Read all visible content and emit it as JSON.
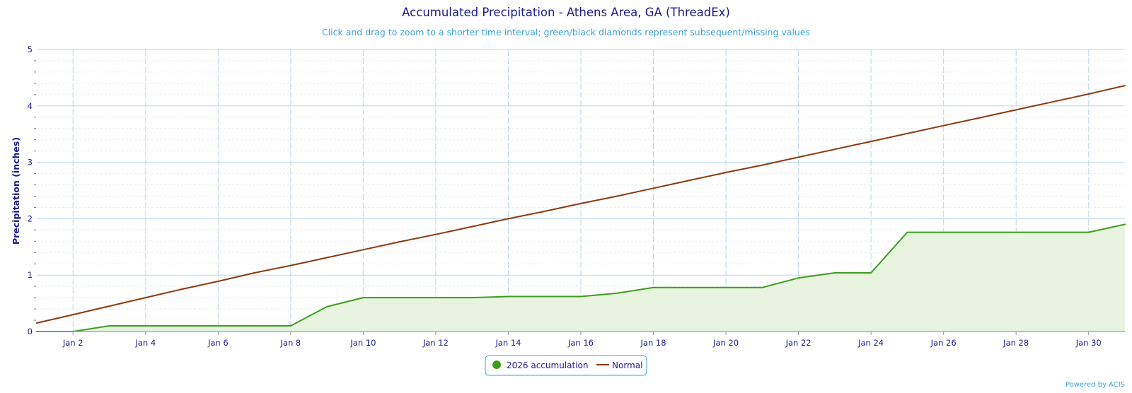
{
  "chart_data": {
    "type": "area",
    "title": "Accumulated Precipitation - Athens Area, GA (ThreadEx)",
    "subtitle": "Click and drag to zoom to a shorter time interval; green/black diamonds represent subsequent/missing values",
    "ylabel": "Precipitation (inches)",
    "xlabel": "",
    "ylim": [
      0,
      5
    ],
    "xlim": [
      1,
      31
    ],
    "yticks": [
      0,
      1,
      2,
      3,
      4,
      5
    ],
    "xticks": [
      2,
      4,
      6,
      8,
      10,
      12,
      14,
      16,
      18,
      20,
      22,
      24,
      26,
      28,
      30
    ],
    "xtick_labels": [
      "Jan 2",
      "Jan 4",
      "Jan 6",
      "Jan 8",
      "Jan 10",
      "Jan 12",
      "Jan 14",
      "Jan 16",
      "Jan 18",
      "Jan 20",
      "Jan 22",
      "Jan 24",
      "Jan 26",
      "Jan 28",
      "Jan 30"
    ],
    "grid": true,
    "legend_position": "bottom-center",
    "series": [
      {
        "name": "2026 accumulation",
        "kind": "area",
        "color": "#3c9d1e",
        "fill": "#e8f4e0",
        "x": [
          1,
          2,
          3,
          4,
          5,
          6,
          7,
          8,
          9,
          10,
          11,
          12,
          13,
          14,
          15,
          16,
          17,
          18,
          19,
          20,
          21,
          22,
          23,
          24,
          25,
          26,
          27,
          28,
          29,
          30,
          31
        ],
        "values": [
          0.0,
          0.0,
          0.1,
          0.1,
          0.1,
          0.1,
          0.1,
          0.1,
          0.44,
          0.6,
          0.6,
          0.6,
          0.6,
          0.62,
          0.62,
          0.62,
          0.68,
          0.78,
          0.78,
          0.78,
          0.78,
          0.95,
          1.04,
          1.04,
          1.76,
          1.76,
          1.76,
          1.76,
          1.76,
          1.76,
          1.9
        ]
      },
      {
        "name": "Normal",
        "kind": "line",
        "color": "#8b3a0f",
        "x": [
          1,
          2,
          3,
          4,
          5,
          6,
          7,
          8,
          9,
          10,
          11,
          12,
          13,
          14,
          15,
          16,
          17,
          18,
          19,
          20,
          21,
          22,
          23,
          24,
          25,
          26,
          27,
          28,
          29,
          30,
          31
        ],
        "values": [
          0.15,
          0.3,
          0.45,
          0.6,
          0.75,
          0.89,
          1.04,
          1.17,
          1.31,
          1.45,
          1.59,
          1.72,
          1.86,
          2.0,
          2.13,
          2.27,
          2.4,
          2.54,
          2.68,
          2.82,
          2.95,
          3.09,
          3.23,
          3.37,
          3.51,
          3.65,
          3.79,
          3.93,
          4.07,
          4.21,
          4.36
        ]
      }
    ]
  },
  "credit": "Powered by ACIS",
  "colors": {
    "title": "#1a1a8c",
    "subtitle": "#3aa3d6",
    "axis_text": "#1a1a8c",
    "grid_major": "#b9d8ec",
    "grid_minor": "#e9eef2",
    "legend_border": "#3aa3d6",
    "credit": "#3aa3d6"
  }
}
